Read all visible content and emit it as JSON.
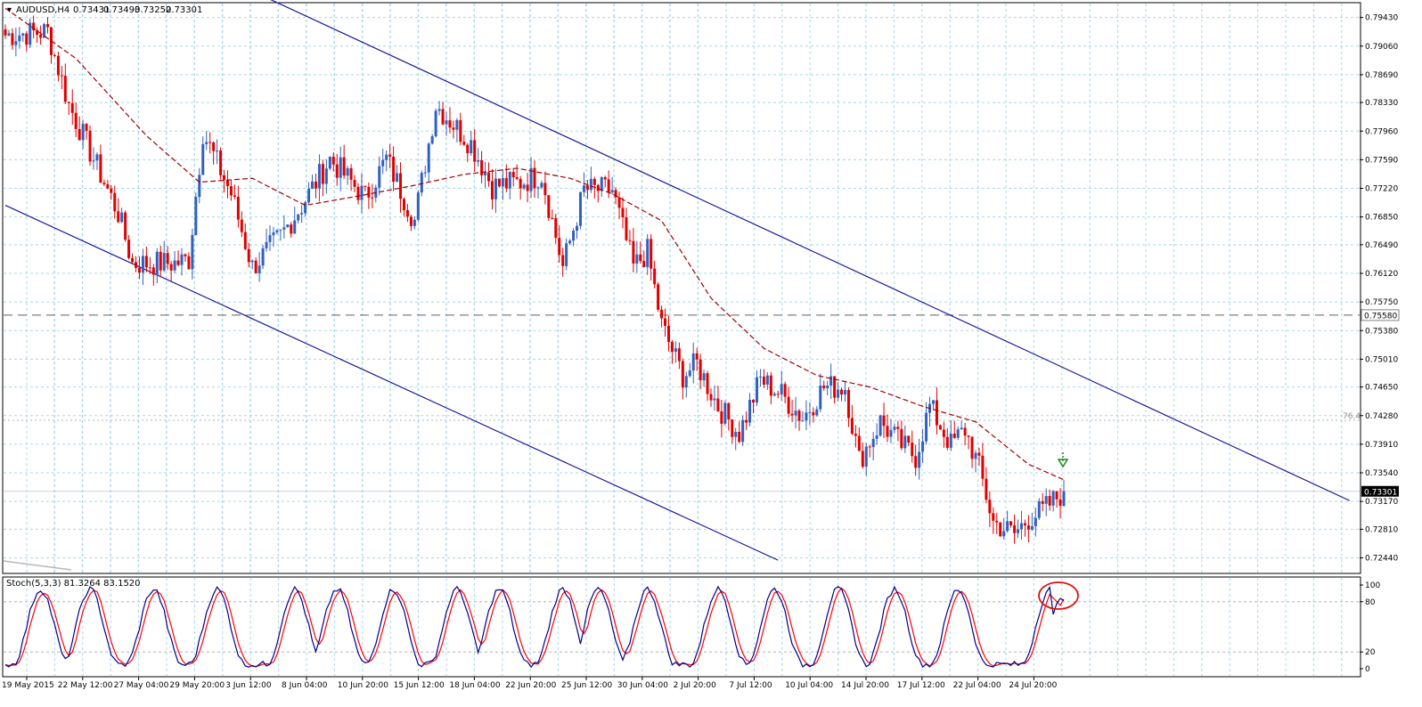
{
  "chart_data": {
    "type": "candlestick",
    "symbol_header": {
      "symbol": "AUDUSD,H4",
      "open": "0.73431",
      "high": "0.73493",
      "low": "0.73252",
      "close": "0.73301"
    },
    "price_axis": {
      "range": [
        0.7225,
        0.7961
      ],
      "ticks": [
        "0.79430",
        "0.79060",
        "0.78690",
        "0.78330",
        "0.77960",
        "0.77590",
        "0.77220",
        "0.76850",
        "0.76490",
        "0.76120",
        "0.75750",
        "0.75380",
        "0.75010",
        "0.74650",
        "0.74280",
        "0.73910",
        "0.73540",
        "0.73170",
        "0.72810",
        "0.72440"
      ],
      "current_price_label": "0.73301",
      "horizontal_level_label": "0.75580",
      "fib_label": "76.4"
    },
    "time_axis": {
      "labels": [
        "19 May 2015",
        "22 May 12:00",
        "27 May 04:00",
        "29 May 20:00",
        "3 Jun 12:00",
        "8 Jun 04:00",
        "10 Jun 20:00",
        "15 Jun 12:00",
        "18 Jun 04:00",
        "22 Jun 20:00",
        "25 Jun 12:00",
        "30 Jun 04:00",
        "2 Jul 20:00",
        "7 Jul 12:00",
        "10 Jul 04:00",
        "14 Jul 20:00",
        "17 Jul 12:00",
        "22 Jul 04:00",
        "24 Jul 20:00"
      ]
    },
    "key_points": [
      {
        "bar": 0,
        "close": 0.792
      },
      {
        "bar": 12,
        "close": 0.7925
      },
      {
        "bar": 18,
        "close": 0.783
      },
      {
        "bar": 32,
        "close": 0.769
      },
      {
        "bar": 36,
        "close": 0.7625
      },
      {
        "bar": 48,
        "close": 0.7625
      },
      {
        "bar": 52,
        "close": 0.763
      },
      {
        "bar": 56,
        "close": 0.7795
      },
      {
        "bar": 64,
        "close": 0.7715
      },
      {
        "bar": 70,
        "close": 0.762
      },
      {
        "bar": 78,
        "close": 0.766
      },
      {
        "bar": 84,
        "close": 0.77
      },
      {
        "bar": 92,
        "close": 0.776
      },
      {
        "bar": 96,
        "close": 0.774
      },
      {
        "bar": 102,
        "close": 0.771
      },
      {
        "bar": 108,
        "close": 0.776
      },
      {
        "bar": 116,
        "close": 0.768
      },
      {
        "bar": 122,
        "close": 0.783
      },
      {
        "bar": 126,
        "close": 0.781
      },
      {
        "bar": 132,
        "close": 0.778
      },
      {
        "bar": 138,
        "close": 0.7725
      },
      {
        "bar": 146,
        "close": 0.773
      },
      {
        "bar": 152,
        "close": 0.774
      },
      {
        "bar": 158,
        "close": 0.762
      },
      {
        "bar": 164,
        "close": 0.772
      },
      {
        "bar": 172,
        "close": 0.772
      },
      {
        "bar": 178,
        "close": 0.762
      },
      {
        "bar": 182,
        "close": 0.764
      },
      {
        "bar": 186,
        "close": 0.7545
      },
      {
        "bar": 192,
        "close": 0.748
      },
      {
        "bar": 196,
        "close": 0.7495
      },
      {
        "bar": 202,
        "close": 0.744
      },
      {
        "bar": 208,
        "close": 0.7405
      },
      {
        "bar": 214,
        "close": 0.7475
      },
      {
        "bar": 220,
        "close": 0.7455
      },
      {
        "bar": 226,
        "close": 0.7425
      },
      {
        "bar": 232,
        "close": 0.7465
      },
      {
        "bar": 238,
        "close": 0.7465
      },
      {
        "bar": 242,
        "close": 0.737
      },
      {
        "bar": 248,
        "close": 0.742
      },
      {
        "bar": 254,
        "close": 0.739
      },
      {
        "bar": 258,
        "close": 0.7375
      },
      {
        "bar": 262,
        "close": 0.744
      },
      {
        "bar": 268,
        "close": 0.739
      },
      {
        "bar": 272,
        "close": 0.741
      },
      {
        "bar": 276,
        "close": 0.736
      },
      {
        "bar": 280,
        "close": 0.729
      },
      {
        "bar": 286,
        "close": 0.7275
      },
      {
        "bar": 290,
        "close": 0.7295
      },
      {
        "bar": 294,
        "close": 0.7305
      },
      {
        "bar": 300,
        "close": 0.733
      }
    ],
    "moving_average": [
      {
        "bar": 0,
        "value": 0.7955
      },
      {
        "bar": 20,
        "value": 0.789
      },
      {
        "bar": 40,
        "value": 0.779
      },
      {
        "bar": 55,
        "value": 0.773
      },
      {
        "bar": 70,
        "value": 0.7735
      },
      {
        "bar": 85,
        "value": 0.77
      },
      {
        "bar": 100,
        "value": 0.7712
      },
      {
        "bar": 115,
        "value": 0.7725
      },
      {
        "bar": 130,
        "value": 0.774
      },
      {
        "bar": 145,
        "value": 0.7748
      },
      {
        "bar": 160,
        "value": 0.7735
      },
      {
        "bar": 172,
        "value": 0.7715
      },
      {
        "bar": 186,
        "value": 0.768
      },
      {
        "bar": 200,
        "value": 0.758
      },
      {
        "bar": 215,
        "value": 0.7515
      },
      {
        "bar": 230,
        "value": 0.748
      },
      {
        "bar": 245,
        "value": 0.7465
      },
      {
        "bar": 260,
        "value": 0.744
      },
      {
        "bar": 275,
        "value": 0.742
      },
      {
        "bar": 290,
        "value": 0.7365
      },
      {
        "bar": 300,
        "value": 0.7345
      }
    ],
    "bars_total": 301,
    "channel": {
      "upper": {
        "start": {
          "bar": 71,
          "price": 0.7975
        },
        "end": {
          "bar": 381,
          "price": 0.7318
        }
      },
      "lower": {
        "start": {
          "bar": 0,
          "price": 0.77
        },
        "end": {
          "bar": 219,
          "price": 0.7241
        }
      }
    },
    "horizontal_levels": [
      {
        "price": 0.7558,
        "style": "dashed",
        "color": "#808080"
      },
      {
        "price": 0.7422,
        "style": "dotted",
        "color": "#c0c0c0"
      }
    ],
    "stochastic": {
      "header": "Stoch(5,3,3) 81.3264 83.1520",
      "k_value": 81.3264,
      "d_value": 83.152,
      "ticks": [
        "100",
        "80",
        "20",
        "0"
      ],
      "cycle_peaks_bars": [
        10,
        24,
        42,
        60,
        82,
        94,
        110,
        128,
        140,
        158,
        168,
        182,
        202,
        218,
        236,
        252,
        270,
        296
      ],
      "k_color": "#00008b",
      "d_color": "#ff0000"
    },
    "annotations": {
      "sell_arrow_color": "#1c8a1c",
      "circle_color": "#e01010"
    },
    "colors": {
      "bull": "#3060c0",
      "bear": "#e00000",
      "grid": "#a8d8e8",
      "channel": "#1a1a9a",
      "ma": "#a00000"
    }
  }
}
